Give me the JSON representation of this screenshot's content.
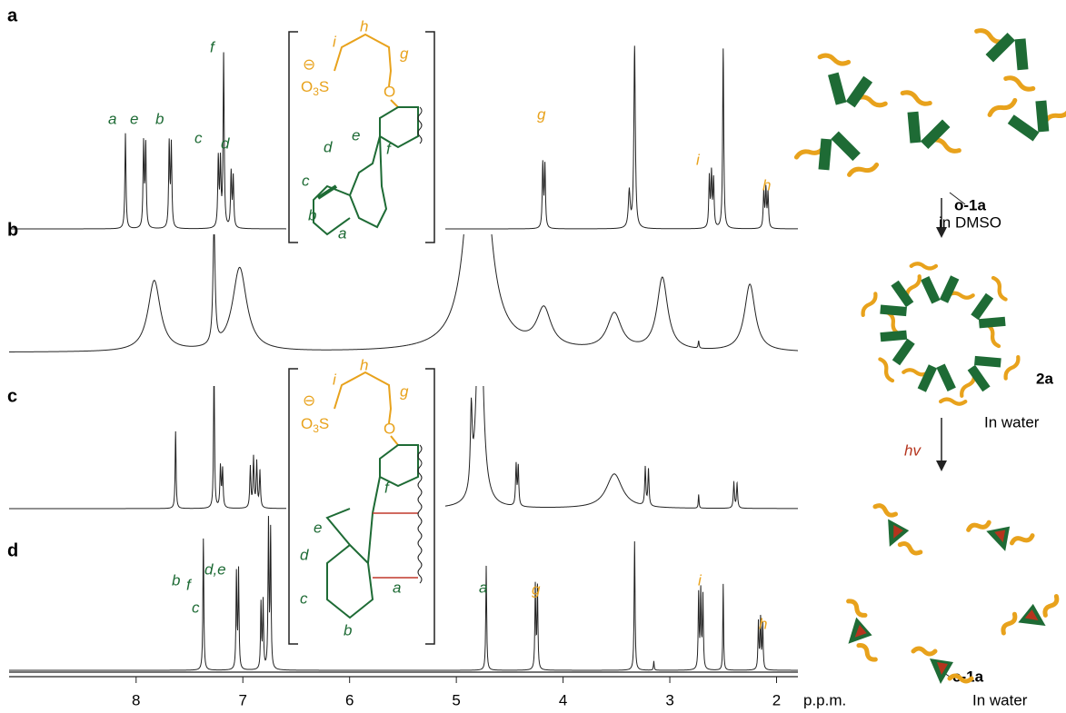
{
  "axis": {
    "xlim": [
      9.19,
      1.8
    ],
    "xticks": [
      8,
      7,
      6,
      5,
      4,
      3,
      2
    ],
    "unit": "p.p.m."
  },
  "spectra": [
    {
      "panel": "a",
      "labels": [
        "a",
        "e",
        "b",
        "c",
        "f",
        "d",
        "g",
        "i",
        "h"
      ],
      "peaks": [
        [
          8.1,
          105,
          0.006
        ],
        [
          7.93,
          92,
          0.006
        ],
        [
          7.91,
          90,
          0.006
        ],
        [
          7.69,
          92,
          0.006
        ],
        [
          7.67,
          90,
          0.006
        ],
        [
          7.23,
          75,
          0.006
        ],
        [
          7.21,
          70,
          0.006
        ],
        [
          7.18,
          190,
          0.006
        ],
        [
          7.11,
          60,
          0.006
        ],
        [
          7.09,
          55,
          0.006
        ],
        [
          4.19,
          70,
          0.006
        ],
        [
          4.17,
          68,
          0.006
        ],
        [
          3.38,
          40,
          0.01
        ],
        [
          3.33,
          200,
          0.008
        ],
        [
          2.5,
          198,
          0.006
        ],
        [
          2.63,
          55,
          0.006
        ],
        [
          2.61,
          58,
          0.006
        ],
        [
          2.59,
          52,
          0.006
        ],
        [
          2.12,
          40,
          0.006
        ],
        [
          2.1,
          42,
          0.006
        ],
        [
          2.08,
          38,
          0.006
        ]
      ]
    },
    {
      "panel": "b",
      "labels": [],
      "peaks": [
        [
          7.83,
          78,
          0.07
        ],
        [
          7.27,
          130,
          0.012
        ],
        [
          7.03,
          92,
          0.08
        ],
        [
          4.8,
          400,
          0.09
        ],
        [
          4.18,
          42,
          0.08
        ],
        [
          3.52,
          40,
          0.08
        ],
        [
          3.07,
          80,
          0.06
        ],
        [
          2.25,
          74,
          0.06
        ],
        [
          2.73,
          8,
          0.005
        ]
      ]
    },
    {
      "panel": "c",
      "labels": [
        "i",
        "h",
        "g",
        "f"
      ],
      "peaks": [
        [
          7.63,
          85,
          0.005
        ],
        [
          7.27,
          170,
          0.005
        ],
        [
          7.21,
          45,
          0.006
        ],
        [
          7.19,
          42,
          0.006
        ],
        [
          6.93,
          45,
          0.006
        ],
        [
          6.9,
          55,
          0.006
        ],
        [
          6.87,
          50,
          0.006
        ],
        [
          6.84,
          40,
          0.006
        ],
        [
          4.86,
          85,
          0.01
        ],
        [
          4.78,
          300,
          0.03
        ],
        [
          4.44,
          45,
          0.006
        ],
        [
          4.42,
          43,
          0.006
        ],
        [
          3.52,
          38,
          0.09
        ],
        [
          3.23,
          42,
          0.006
        ],
        [
          3.2,
          40,
          0.006
        ],
        [
          2.73,
          15,
          0.004
        ],
        [
          2.4,
          28,
          0.006
        ],
        [
          2.37,
          27,
          0.006
        ]
      ]
    },
    {
      "panel": "d",
      "labels": [
        "f",
        "b",
        "c",
        "d,e",
        "a",
        "g",
        "i",
        "h",
        "e",
        "d",
        "c",
        "a",
        "b"
      ],
      "peaks": [
        [
          7.37,
          145,
          0.005
        ],
        [
          7.06,
          105,
          0.005
        ],
        [
          7.04,
          108,
          0.005
        ],
        [
          6.83,
          72,
          0.005
        ],
        [
          6.81,
          74,
          0.005
        ],
        [
          6.76,
          160,
          0.005
        ],
        [
          6.74,
          150,
          0.005
        ],
        [
          4.72,
          115,
          0.005
        ],
        [
          4.26,
          92,
          0.005
        ],
        [
          4.24,
          90,
          0.005
        ],
        [
          3.33,
          142,
          0.005
        ],
        [
          3.15,
          10,
          0.004
        ],
        [
          2.73,
          82,
          0.005
        ],
        [
          2.71,
          84,
          0.005
        ],
        [
          2.69,
          80,
          0.005
        ],
        [
          2.5,
          95,
          0.004
        ],
        [
          2.17,
          52,
          0.005
        ],
        [
          2.15,
          55,
          0.005
        ],
        [
          2.13,
          50,
          0.005
        ]
      ]
    }
  ],
  "structure_top": {
    "chain": [
      "i",
      "h",
      "g"
    ],
    "minus": "⊖",
    "o3s": [
      "O",
      "3",
      "S"
    ],
    "oxygen": "O",
    "ring": [
      "f",
      "e",
      "d",
      "c",
      "b",
      "a"
    ]
  },
  "structure_bottom": {
    "chain": [
      "i",
      "h",
      "g"
    ],
    "minus": "⊖",
    "o3s": [
      "O",
      "3",
      "S"
    ],
    "oxygen": "O",
    "ring": [
      "f"
    ]
  },
  "scheme": {
    "o1a": "o-1a",
    "dmso": "in DMSO",
    "a2": "2a",
    "water1": "In water",
    "hv": "hv",
    "c1a": "c-1a",
    "water2": "In water"
  }
}
